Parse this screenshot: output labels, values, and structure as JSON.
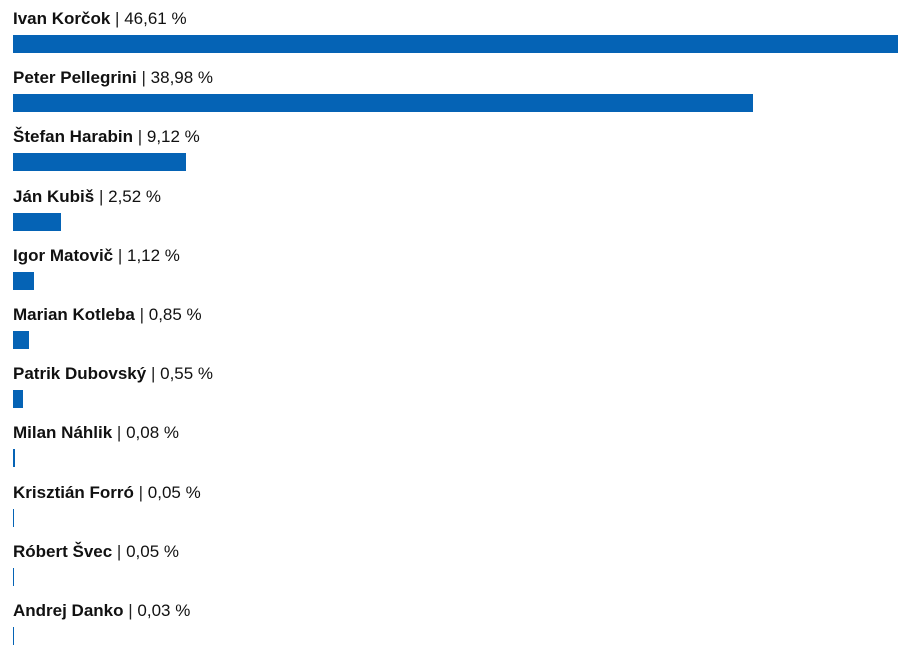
{
  "colors": {
    "bar": "#0563b5"
  },
  "chart_data": {
    "type": "bar",
    "orientation": "horizontal",
    "title": "",
    "xlabel": "",
    "ylabel": "",
    "unit": "%",
    "xlim": [
      0,
      46.61
    ],
    "categories": [
      "Ivan Korčok",
      "Peter Pellegrini",
      "Štefan Harabin",
      "Ján Kubiš",
      "Igor Matovič",
      "Marian Kotleba",
      "Patrik Dubovský",
      "Milan Náhlik",
      "Krisztián Forró",
      "Róbert Švec",
      "Andrej Danko"
    ],
    "values": [
      46.61,
      38.98,
      9.12,
      2.52,
      1.12,
      0.85,
      0.55,
      0.08,
      0.05,
      0.05,
      0.03
    ],
    "value_labels": [
      "46,61 %",
      "38,98 %",
      "9,12 %",
      "2,52 %",
      "1,12 %",
      "0,85 %",
      "0,55 %",
      "0,08 %",
      "0,05 %",
      "0,05 %",
      "0,03 %"
    ],
    "separator": " | ",
    "grid": false,
    "legend": "none"
  }
}
